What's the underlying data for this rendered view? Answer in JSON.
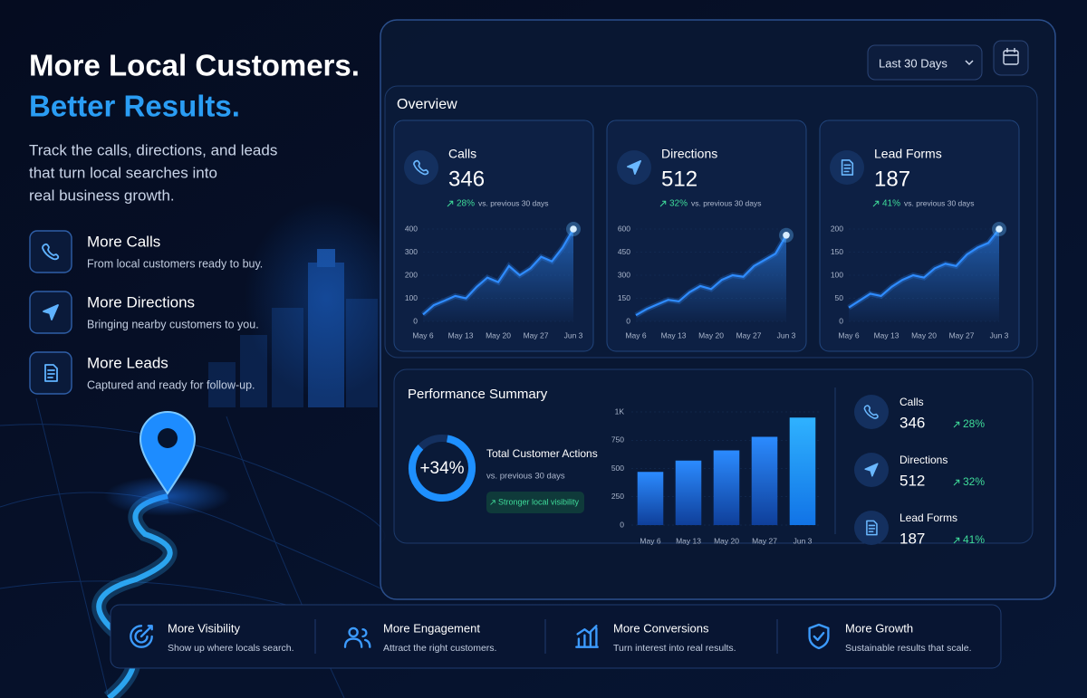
{
  "hero": {
    "title_line1": "More Local Customers.",
    "title_line2": "Better Results.",
    "description_lines": [
      "Track the calls, directions, and leads",
      "that turn local searches into",
      "real business growth."
    ]
  },
  "features": [
    {
      "title": "More Calls",
      "description": "From local customers ready to buy."
    },
    {
      "title": "More Directions",
      "description": "Bringing nearby customers to you."
    },
    {
      "title": "More Leads",
      "description": "Captured and ready for follow-up."
    }
  ],
  "dashboard": {
    "date_range": "Last 30 Days",
    "overview": {
      "title": "Overview",
      "cards": [
        {
          "label": "Calls",
          "value": "346",
          "change": "28%",
          "comparison": "vs. previous 30 days",
          "chart": {
            "type": "line",
            "color": "#2f8cff",
            "x": [
              0,
              2,
              4,
              6,
              8,
              10,
              12,
              14,
              16,
              18,
              20,
              22,
              24,
              26,
              28
            ],
            "values": [
              30,
              70,
              90,
              110,
              100,
              150,
              190,
              170,
              240,
              200,
              230,
              280,
              260,
              320,
              400
            ],
            "xlim": [
              0,
              28
            ],
            "xticks": [
              {
                "value": 0,
                "label": "May 6"
              },
              {
                "value": 7,
                "label": "May 13"
              },
              {
                "value": 14,
                "label": "May 20"
              },
              {
                "value": 21,
                "label": "May 27"
              },
              {
                "value": 28,
                "label": "Jun 3"
              }
            ],
            "ylim": [
              0,
              400
            ],
            "yticks": [
              0,
              100,
              200,
              300,
              400
            ]
          }
        },
        {
          "label": "Directions",
          "value": "512",
          "change": "32%",
          "comparison": "vs. previous 30 days",
          "chart": {
            "type": "line",
            "color": "#2f8cff",
            "x": [
              0,
              2,
              4,
              6,
              8,
              10,
              12,
              14,
              16,
              18,
              20,
              22,
              24,
              26,
              28
            ],
            "values": [
              40,
              80,
              110,
              140,
              130,
              190,
              230,
              210,
              270,
              300,
              290,
              360,
              400,
              440,
              560
            ],
            "xlim": [
              0,
              28
            ],
            "xticks": [
              {
                "value": 0,
                "label": "May 6"
              },
              {
                "value": 7,
                "label": "May 13"
              },
              {
                "value": 14,
                "label": "May 20"
              },
              {
                "value": 21,
                "label": "May 27"
              },
              {
                "value": 28,
                "label": "Jun 3"
              }
            ],
            "ylim": [
              0,
              600
            ],
            "yticks": [
              0,
              150,
              300,
              450,
              600
            ]
          }
        },
        {
          "label": "Lead Forms",
          "value": "187",
          "change": "41%",
          "comparison": "vs. previous 30 days",
          "chart": {
            "type": "line",
            "color": "#2f8cff",
            "x": [
              0,
              2,
              4,
              6,
              8,
              10,
              12,
              14,
              16,
              18,
              20,
              22,
              24,
              26,
              28
            ],
            "values": [
              30,
              45,
              60,
              55,
              75,
              90,
              100,
              95,
              115,
              125,
              120,
              145,
              160,
              170,
              200
            ],
            "xlim": [
              0,
              28
            ],
            "xticks": [
              {
                "value": 0,
                "label": "May 6"
              },
              {
                "value": 7,
                "label": "May 13"
              },
              {
                "value": 14,
                "label": "May 20"
              },
              {
                "value": 21,
                "label": "May 27"
              },
              {
                "value": 28,
                "label": "Jun 3"
              }
            ],
            "ylim": [
              0,
              200
            ],
            "yticks": [
              0,
              50,
              100,
              150,
              200
            ]
          }
        }
      ]
    },
    "performance": {
      "title": "Performance Summary",
      "total_change": "+34%",
      "total_label": "Total Customer Actions",
      "comparison": "vs. previous 30 days",
      "badge": "Stronger local visibility",
      "chart": {
        "type": "bar",
        "color": "#1f6fe0",
        "categories": [
          "May 6",
          "May 13",
          "May 20",
          "May 27",
          "Jun 3"
        ],
        "values": [
          470,
          570,
          660,
          780,
          950
        ],
        "ylim": [
          0,
          1000
        ],
        "yticks": [
          0,
          250,
          500,
          750,
          {
            "value": 1000,
            "label": "1K"
          }
        ]
      },
      "stats": [
        {
          "label": "Calls",
          "value": "346",
          "change": "28%"
        },
        {
          "label": "Directions",
          "value": "512",
          "change": "32%"
        },
        {
          "label": "Lead Forms",
          "value": "187",
          "change": "41%"
        }
      ]
    }
  },
  "benefits": [
    {
      "title": "More Visibility",
      "description": "Show up where locals search."
    },
    {
      "title": "More Engagement",
      "description": "Attract the right customers."
    },
    {
      "title": "More Conversions",
      "description": "Turn interest into real results."
    },
    {
      "title": "More Growth",
      "description": "Sustainable results that scale."
    }
  ]
}
